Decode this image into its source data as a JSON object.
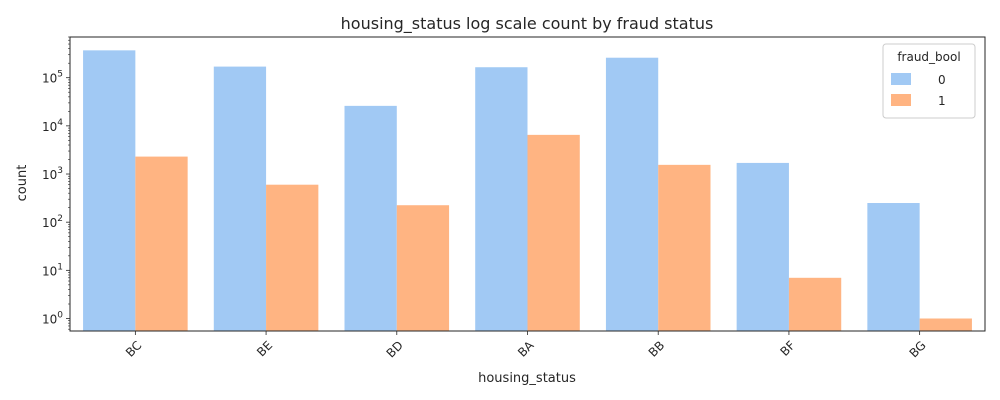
{
  "chart_data": {
    "type": "bar",
    "title": "housing_status log scale count by fraud status",
    "xlabel": "housing_status",
    "ylabel": "count",
    "yscale": "log",
    "ylim": [
      0.55,
      700000
    ],
    "categories": [
      "BC",
      "BE",
      "BD",
      "BA",
      "BB",
      "BF",
      "BG"
    ],
    "series": [
      {
        "name": "0",
        "color": "#a1c9f4",
        "values": [
          370000,
          170000,
          26000,
          165000,
          260000,
          1700,
          250
        ]
      },
      {
        "name": "1",
        "color": "#ffb482",
        "values": [
          2300,
          600,
          225,
          6500,
          1550,
          7,
          1
        ]
      }
    ],
    "y_ticks": [
      {
        "value": 1,
        "base": "10",
        "exp": "0"
      },
      {
        "value": 10,
        "base": "10",
        "exp": "1"
      },
      {
        "value": 100,
        "base": "10",
        "exp": "2"
      },
      {
        "value": 1000,
        "base": "10",
        "exp": "3"
      },
      {
        "value": 10000,
        "base": "10",
        "exp": "4"
      },
      {
        "value": 100000,
        "base": "10",
        "exp": "5"
      }
    ],
    "x_tick_rotation": 45,
    "legend": {
      "title": "fraud_bool",
      "position": "top-right"
    },
    "grid": false
  }
}
